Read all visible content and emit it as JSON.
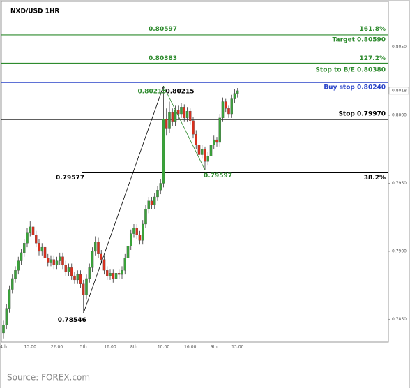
{
  "chart_data": {
    "type": "candlestick",
    "title": "NXD/USD 1HR",
    "source": "Source: FOREX.com",
    "up_color": "#3aa23a",
    "down_color": "#d8301e",
    "wick_color": "#333333",
    "categories": [
      "4th",
      null,
      null,
      null,
      null,
      null,
      null,
      null,
      null,
      "13:00",
      null,
      null,
      null,
      null,
      null,
      null,
      null,
      null,
      "22:00",
      null,
      null,
      null,
      null,
      null,
      null,
      null,
      null,
      "5th",
      null,
      null,
      null,
      null,
      null,
      null,
      null,
      null,
      "16:00",
      null,
      null,
      null,
      null,
      null,
      null,
      null,
      "8th",
      null,
      null,
      null,
      null,
      null,
      null,
      null,
      null,
      null,
      "10:00",
      null,
      null,
      null,
      null,
      null,
      null,
      null,
      null,
      "16:00",
      null,
      null,
      null,
      null,
      null,
      null,
      null,
      "9th",
      null,
      null,
      null,
      null,
      null,
      null,
      null,
      "13:00"
    ],
    "open": [
      0.784,
      0.7846,
      0.7858,
      0.7872,
      0.788,
      0.7886,
      0.7893,
      0.7899,
      0.7906,
      0.7914,
      0.7918,
      0.7912,
      0.7906,
      0.79,
      0.7903,
      0.7895,
      0.7892,
      0.7894,
      0.789,
      0.7893,
      0.7896,
      0.789,
      0.7885,
      0.7888,
      0.7882,
      0.7879,
      0.7883,
      0.7876,
      0.7868,
      0.788,
      0.7888,
      0.79,
      0.7907,
      0.7898,
      0.7894,
      0.7886,
      0.7882,
      0.7884,
      0.788,
      0.7884,
      0.7883,
      0.7886,
      0.7895,
      0.7904,
      0.7913,
      0.7917,
      0.7912,
      0.7908,
      0.792,
      0.7931,
      0.7937,
      0.7934,
      0.794,
      0.7945,
      0.795,
      0.7997,
      0.799,
      0.8002,
      0.7995,
      0.8004,
      0.8001,
      0.8006,
      0.7998,
      0.8003,
      0.7996,
      0.7986,
      0.7978,
      0.7971,
      0.7975,
      0.7966,
      0.797,
      0.7978,
      0.7982,
      0.798,
      0.7998,
      0.801,
      0.8005,
      0.8001,
      0.8012,
      0.8016
    ],
    "high": [
      0.7849,
      0.7861,
      0.7875,
      0.7883,
      0.7889,
      0.7896,
      0.7902,
      0.7909,
      0.7917,
      0.7922,
      0.7921,
      0.7915,
      0.7909,
      0.7906,
      0.7906,
      0.7898,
      0.7897,
      0.7897,
      0.7896,
      0.7899,
      0.7899,
      0.7893,
      0.7891,
      0.7891,
      0.7885,
      0.7886,
      0.7886,
      0.7879,
      0.7883,
      0.7891,
      0.7903,
      0.7911,
      0.791,
      0.7901,
      0.7897,
      0.7889,
      0.7887,
      0.7887,
      0.7887,
      0.7887,
      0.7889,
      0.7898,
      0.7907,
      0.7916,
      0.792,
      0.792,
      0.7915,
      0.7923,
      0.7934,
      0.794,
      0.794,
      0.7943,
      0.7948,
      0.7953,
      0.80215,
      0.8005,
      0.801,
      0.8005,
      0.8007,
      0.8007,
      0.8009,
      0.8008,
      0.8006,
      0.8005,
      0.7999,
      0.7989,
      0.7981,
      0.7978,
      0.7977,
      0.7973,
      0.7981,
      0.7985,
      0.7984,
      0.8001,
      0.8013,
      0.8012,
      0.8007,
      0.8015,
      0.8019,
      0.802
    ],
    "low": [
      0.7836,
      0.7843,
      0.7855,
      0.7869,
      0.7877,
      0.7883,
      0.789,
      0.7896,
      0.7903,
      0.7911,
      0.7909,
      0.7903,
      0.7897,
      0.7897,
      0.7892,
      0.7889,
      0.7889,
      0.7887,
      0.7887,
      0.789,
      0.7887,
      0.7882,
      0.7882,
      0.7879,
      0.7876,
      0.7876,
      0.7873,
      0.78546,
      0.7865,
      0.7877,
      0.7885,
      0.7897,
      0.7895,
      0.7891,
      0.7883,
      0.7879,
      0.7879,
      0.7877,
      0.7877,
      0.788,
      0.788,
      0.7883,
      0.7892,
      0.7901,
      0.791,
      0.7909,
      0.7905,
      0.7905,
      0.7917,
      0.7928,
      0.7931,
      0.7931,
      0.7937,
      0.7942,
      0.7947,
      0.7985,
      0.7987,
      0.7992,
      0.7992,
      0.7997,
      0.7998,
      0.7995,
      0.7995,
      0.7993,
      0.7983,
      0.7975,
      0.7968,
      0.7968,
      0.79597,
      0.7963,
      0.7967,
      0.7975,
      0.7977,
      0.7977,
      0.7995,
      0.8002,
      0.7998,
      0.7998,
      0.8009,
      0.8013
    ],
    "close": [
      0.7846,
      0.7858,
      0.7872,
      0.788,
      0.7886,
      0.7893,
      0.7899,
      0.7906,
      0.7914,
      0.7918,
      0.7912,
      0.7906,
      0.79,
      0.7903,
      0.7895,
      0.7892,
      0.7894,
      0.789,
      0.7893,
      0.7896,
      0.789,
      0.7885,
      0.7888,
      0.7882,
      0.7879,
      0.7883,
      0.7876,
      0.7868,
      0.788,
      0.7888,
      0.79,
      0.7907,
      0.7898,
      0.7894,
      0.7886,
      0.7882,
      0.7884,
      0.788,
      0.7884,
      0.7883,
      0.7886,
      0.7895,
      0.7904,
      0.7913,
      0.7917,
      0.7912,
      0.7908,
      0.792,
      0.7931,
      0.7937,
      0.7934,
      0.794,
      0.7945,
      0.795,
      0.7997,
      0.799,
      0.8002,
      0.7995,
      0.8004,
      0.8001,
      0.8006,
      0.7998,
      0.8003,
      0.7996,
      0.7986,
      0.7978,
      0.7971,
      0.7975,
      0.7966,
      0.797,
      0.7978,
      0.7982,
      0.798,
      0.7998,
      0.801,
      0.8005,
      0.8001,
      0.8012,
      0.8016,
      0.8018
    ],
    "ylim": [
      0.78333,
      0.80836
    ],
    "yticks": [
      {
        "value": 0.805,
        "label": "0.8050"
      },
      {
        "value": 0.8,
        "label": "0.8000"
      },
      {
        "value": 0.795,
        "label": "0.7950"
      },
      {
        "value": 0.79,
        "label": "0.7900"
      },
      {
        "value": 0.785,
        "label": "0.7850"
      }
    ],
    "grid": false,
    "levels": [
      {
        "value": 0.80597,
        "color": "#2e8b2e",
        "left_label": "0.80597",
        "right_label": "161.8%"
      },
      {
        "value": 0.8059,
        "color": "#2e8b2e",
        "right_label": "Target 0.80590"
      },
      {
        "value": 0.80383,
        "color": "#2e8b2e",
        "left_label": "0.80383",
        "right_label": "127.2%"
      },
      {
        "value": 0.8038,
        "color": "#2e8b2e",
        "right_label": "Stop to B/E 0.80380"
      },
      {
        "value": 0.8024,
        "color": "#2a44c8",
        "right_label": "Buy stop 0.80240"
      },
      {
        "value": 0.7997,
        "color": "#000000",
        "right_label": "Stop 0.79970"
      },
      {
        "value": 0.79577,
        "color": "#000000",
        "left_label": "0.79577",
        "right_label": "38.2%"
      }
    ],
    "swings": [
      {
        "value": 0.78546,
        "color": "#000000"
      },
      {
        "value": 0.80215,
        "color": "#000000"
      },
      {
        "value": 0.79597,
        "color": "#2e8b2e"
      }
    ]
  }
}
